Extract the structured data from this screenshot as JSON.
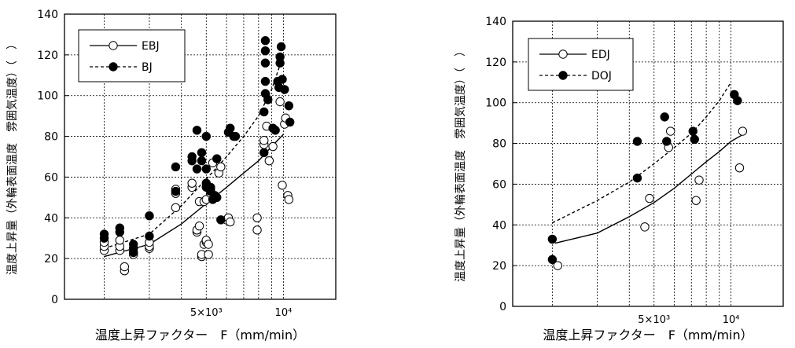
{
  "chart_data": [
    {
      "type": "scatter",
      "ylabel": "温度上昇量（外輪表面温度　雰囲気温度）（　）",
      "xlabel": "温度上昇ファクター　F（mm/min）",
      "x_scale": "log",
      "xlim": [
        1400,
        16000
      ],
      "ylim": [
        0,
        140
      ],
      "y_ticks": [
        0,
        20,
        40,
        60,
        80,
        100,
        120,
        140
      ],
      "x_tick_labels": [
        {
          "value": 5000,
          "label": "5×10³"
        },
        {
          "value": 10000,
          "label": "10⁴"
        }
      ],
      "grid": true,
      "legend_position": "top-left",
      "series": [
        {
          "name": "EBJ",
          "marker": "open-circle",
          "line": "solid",
          "points": [
            [
              2000,
              24
            ],
            [
              2000,
              26
            ],
            [
              2000,
              28
            ],
            [
              2300,
              24
            ],
            [
              2300,
              26
            ],
            [
              2300,
              29
            ],
            [
              2400,
              14
            ],
            [
              2400,
              16
            ],
            [
              2600,
              22
            ],
            [
              2600,
              23
            ],
            [
              2600,
              25
            ],
            [
              3000,
              25
            ],
            [
              3000,
              26
            ],
            [
              3000,
              28
            ],
            [
              3800,
              45
            ],
            [
              3800,
              52
            ],
            [
              3800,
              54
            ],
            [
              4400,
              55
            ],
            [
              4400,
              57
            ],
            [
              4600,
              33
            ],
            [
              4600,
              34
            ],
            [
              4700,
              36
            ],
            [
              4700,
              48
            ],
            [
              4800,
              21
            ],
            [
              4800,
              22
            ],
            [
              4900,
              27
            ],
            [
              4900,
              48
            ],
            [
              5000,
              28
            ],
            [
              5000,
              29
            ],
            [
              5000,
              49
            ],
            [
              5100,
              22
            ],
            [
              5100,
              27
            ],
            [
              5200,
              52
            ],
            [
              5200,
              54
            ],
            [
              5300,
              67
            ],
            [
              5600,
              62
            ],
            [
              5700,
              65
            ],
            [
              6000,
              39
            ],
            [
              6100,
              40
            ],
            [
              6200,
              38
            ],
            [
              7900,
              34
            ],
            [
              7900,
              40
            ],
            [
              8400,
              76
            ],
            [
              8400,
              78
            ],
            [
              8600,
              85
            ],
            [
              8800,
              68
            ],
            [
              9100,
              75
            ],
            [
              9700,
              97
            ],
            [
              9900,
              56
            ],
            [
              10100,
              86
            ],
            [
              10200,
              89
            ],
            [
              10400,
              51
            ],
            [
              10500,
              49
            ]
          ],
          "fit": [
            [
              2000,
              21
            ],
            [
              3000,
              27
            ],
            [
              4000,
              37
            ],
            [
              5000,
              47
            ],
            [
              6000,
              55
            ],
            [
              7000,
              62
            ],
            [
              8000,
              68
            ],
            [
              9000,
              75
            ],
            [
              10000,
              81
            ]
          ]
        },
        {
          "name": "BJ",
          "marker": "filled-circle",
          "line": "dashed",
          "points": [
            [
              2000,
              30
            ],
            [
              2000,
              32
            ],
            [
              2300,
              33
            ],
            [
              2300,
              35
            ],
            [
              2600,
              23
            ],
            [
              2600,
              25
            ],
            [
              2600,
              27
            ],
            [
              3000,
              31
            ],
            [
              3000,
              41
            ],
            [
              3800,
              53
            ],
            [
              3800,
              65
            ],
            [
              4400,
              68
            ],
            [
              4400,
              70
            ],
            [
              4600,
              64
            ],
            [
              4600,
              83
            ],
            [
              4800,
              68
            ],
            [
              4800,
              72
            ],
            [
              5000,
              55
            ],
            [
              5000,
              57
            ],
            [
              5000,
              64
            ],
            [
              5000,
              80
            ],
            [
              5200,
              53
            ],
            [
              5200,
              55
            ],
            [
              5300,
              49
            ],
            [
              5400,
              51
            ],
            [
              5500,
              50
            ],
            [
              5500,
              69
            ],
            [
              5700,
              39
            ],
            [
              6100,
              82
            ],
            [
              6200,
              84
            ],
            [
              6400,
              80
            ],
            [
              6500,
              80
            ],
            [
              8400,
              72
            ],
            [
              8400,
              92
            ],
            [
              8500,
              101
            ],
            [
              8500,
              107
            ],
            [
              8500,
              116
            ],
            [
              8500,
              122
            ],
            [
              8500,
              127
            ],
            [
              8700,
              98
            ],
            [
              9100,
              84
            ],
            [
              9300,
              83
            ],
            [
              9500,
              107
            ],
            [
              9600,
              104
            ],
            [
              9700,
              116
            ],
            [
              9700,
              119
            ],
            [
              9800,
              124
            ],
            [
              9900,
              108
            ],
            [
              10100,
              103
            ],
            [
              10500,
              95
            ],
            [
              10600,
              87
            ]
          ],
          "fit": [
            [
              2000,
              25
            ],
            [
              3000,
              32
            ],
            [
              4000,
              46
            ],
            [
              5000,
              59
            ],
            [
              6000,
              70
            ],
            [
              7000,
              80
            ],
            [
              8000,
              90
            ],
            [
              9000,
              103
            ],
            [
              10000,
              120
            ]
          ]
        }
      ]
    },
    {
      "type": "scatter",
      "ylabel": "温度上昇量（外輪表面温度　雰囲気温度）（　）",
      "xlabel": "温度上昇ファクター　F（mm/min）",
      "x_scale": "log",
      "xlim": [
        1400,
        16000
      ],
      "ylim": [
        0,
        140
      ],
      "y_ticks": [
        0,
        20,
        40,
        60,
        80,
        100,
        120,
        140
      ],
      "x_tick_labels": [
        {
          "value": 5000,
          "label": "5×10³"
        },
        {
          "value": 10000,
          "label": "10⁴"
        }
      ],
      "grid": true,
      "legend_position": "top-left",
      "series": [
        {
          "name": "EDJ",
          "marker": "open-circle",
          "line": "solid",
          "points": [
            [
              2100,
              20
            ],
            [
              4600,
              39
            ],
            [
              4800,
              53
            ],
            [
              5700,
              78
            ],
            [
              5800,
              86
            ],
            [
              7300,
              52
            ],
            [
              7500,
              62
            ],
            [
              10800,
              68
            ],
            [
              11100,
              86
            ]
          ],
          "fit": [
            [
              2050,
              31
            ],
            [
              3000,
              36
            ],
            [
              4000,
              44
            ],
            [
              5000,
              51
            ],
            [
              6000,
              58
            ],
            [
              7000,
              65
            ],
            [
              8000,
              71
            ],
            [
              9000,
              76
            ],
            [
              10000,
              81
            ],
            [
              11000,
              84
            ]
          ]
        },
        {
          "name": "DOJ",
          "marker": "filled-circle",
          "line": "dashed",
          "points": [
            [
              2000,
              33
            ],
            [
              2000,
              23
            ],
            [
              4300,
              63
            ],
            [
              4300,
              81
            ],
            [
              5500,
              93
            ],
            [
              5600,
              81
            ],
            [
              7100,
              86
            ],
            [
              7200,
              82
            ],
            [
              10300,
              104
            ],
            [
              10600,
              101
            ]
          ],
          "fit": [
            [
              2000,
              41
            ],
            [
              3000,
              52
            ],
            [
              4000,
              61
            ],
            [
              5000,
              70
            ],
            [
              6000,
              78
            ],
            [
              7000,
              85
            ],
            [
              8000,
              93
            ],
            [
              9000,
              101
            ],
            [
              10000,
              110
            ]
          ]
        }
      ]
    }
  ]
}
